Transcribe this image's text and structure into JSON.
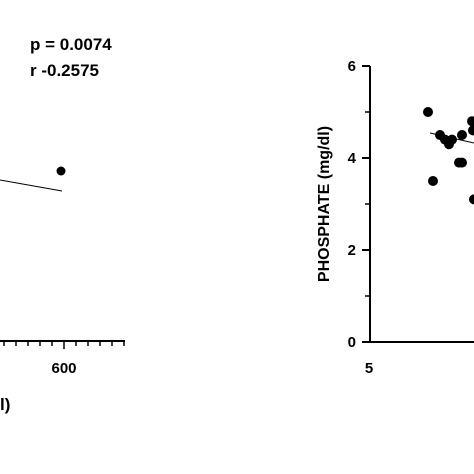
{
  "chart_data": [
    {
      "type": "scatter",
      "annotations": {
        "p": "p = 0.0074",
        "r": "r -0.2575"
      },
      "xlabel_fragment": "l)",
      "x_tick_labels": [
        "600"
      ],
      "points": [
        {
          "x": 600
        }
      ],
      "regression_line": true
    },
    {
      "type": "scatter",
      "ylabel": "PHOSPHATE (mg/dl)",
      "ylim": [
        0,
        6
      ],
      "y_tick_labels": [
        "0",
        "2",
        "4",
        "6"
      ],
      "x_tick_labels": [
        "5"
      ],
      "points": [
        {
          "y": 5.0
        },
        {
          "y": 4.5
        },
        {
          "y": 4.4
        },
        {
          "y": 4.4
        },
        {
          "y": 4.5
        },
        {
          "y": 4.6
        },
        {
          "y": 4.3
        },
        {
          "y": 4.8
        },
        {
          "y": 3.9
        },
        {
          "y": 3.9
        },
        {
          "y": 3.5
        },
        {
          "y": 3.1
        }
      ],
      "regression_line": true
    }
  ]
}
